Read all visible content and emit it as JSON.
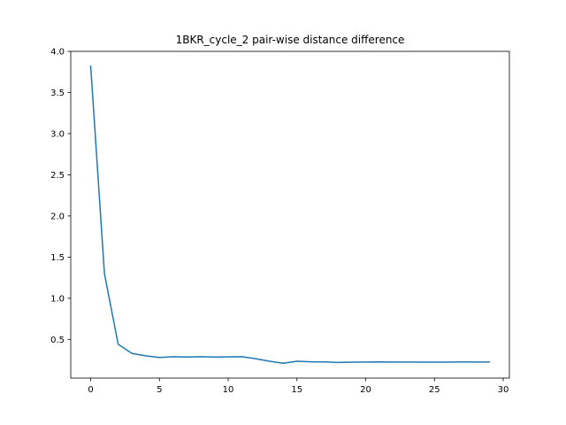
{
  "chart_data": {
    "type": "line",
    "title": "1BKR_cycle_2 pair-wise distance difference",
    "xlabel": "",
    "ylabel": "",
    "xlim": [
      -1.45,
      30.45
    ],
    "ylim": [
      0.03,
      4.0
    ],
    "xticks": [
      0,
      5,
      10,
      15,
      20,
      25,
      30
    ],
    "yticks": [
      0.5,
      1.0,
      1.5,
      2.0,
      2.5,
      3.0,
      3.5,
      4.0
    ],
    "grid": false,
    "series": [
      {
        "color": "#1f77b4",
        "x": [
          0,
          1,
          2,
          3,
          4,
          5,
          6,
          7,
          8,
          9,
          10,
          11,
          12,
          13,
          14,
          15,
          16,
          17,
          18,
          19,
          20,
          21,
          22,
          23,
          24,
          25,
          26,
          27,
          28,
          29
        ],
        "y": [
          3.82,
          1.3,
          0.44,
          0.33,
          0.3,
          0.28,
          0.29,
          0.285,
          0.29,
          0.285,
          0.288,
          0.29,
          0.265,
          0.235,
          0.21,
          0.235,
          0.228,
          0.226,
          0.22,
          0.224,
          0.225,
          0.227,
          0.225,
          0.225,
          0.223,
          0.224,
          0.224,
          0.226,
          0.225,
          0.225
        ]
      }
    ]
  }
}
